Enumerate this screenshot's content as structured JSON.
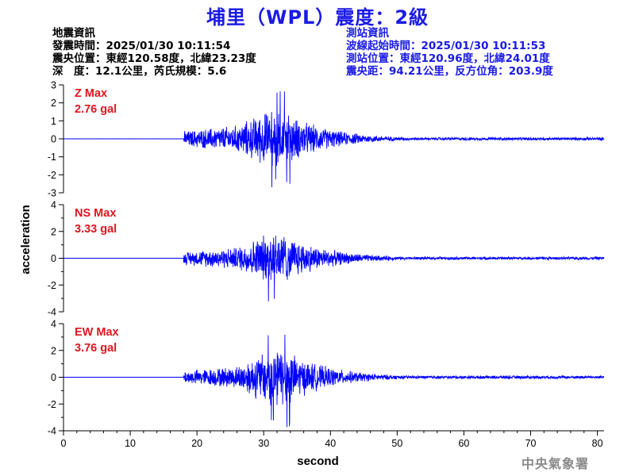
{
  "title": "埔里（WPL）震度：2級",
  "event_info": {
    "heading": "地震資訊",
    "origin_time": "發震時間：2025/01/30 10:11:54",
    "epicenter": "震央位置：東經120.58度，北緯23.23度",
    "depth_magnitude": "深　度：12.1公里，芮氏規模：5.6"
  },
  "station_info": {
    "heading": "測站資訊",
    "wave_start": "波線起始時間：2025/01/30 10:11:53",
    "station_location": "測站位置：東經120.96度，北緯24.01度",
    "distance_azimuth": "震央距：94.21公里，反方位角：203.9度"
  },
  "credit": "中央氣象署",
  "colors": {
    "title": "#1a1ae6",
    "station_info": "#1a1ae6",
    "trace": "#0000ff",
    "max_label": "#e0141e",
    "axis": "#000000"
  },
  "chart_data": {
    "type": "line",
    "xlabel": "second",
    "ylabel": "acceleration",
    "xlim": [
      0,
      81
    ],
    "x_ticks": [
      "0",
      "10",
      "20",
      "30",
      "40",
      "50",
      "60",
      "70",
      "80"
    ],
    "panels": [
      {
        "name": "Z",
        "max_label": "Z Max",
        "max_value": "2.76 gal",
        "ylim": [
          -3,
          3
        ],
        "y_ticks": [
          "3",
          "2",
          "1",
          "0",
          "-1",
          "-2",
          "-3"
        ],
        "envelope": {
          "onset": 18,
          "peak_time": 32,
          "peak": 2.76,
          "pre_level": 0.45,
          "tail_level": 0.07
        }
      },
      {
        "name": "NS",
        "max_label": "NS Max",
        "max_value": "3.33 gal",
        "ylim": [
          -4,
          4
        ],
        "y_ticks": [
          "4",
          "2",
          "0",
          "-2",
          "-4"
        ],
        "envelope": {
          "onset": 18,
          "peak_time": 32,
          "peak": 3.33,
          "pre_level": 0.5,
          "tail_level": 0.09
        }
      },
      {
        "name": "EW",
        "max_label": "EW Max",
        "max_value": "3.76 gal",
        "ylim": [
          -4,
          4
        ],
        "y_ticks": [
          "4",
          "2",
          "0",
          "-2",
          "-4"
        ],
        "envelope": {
          "onset": 18,
          "peak_time": 32,
          "peak": 3.76,
          "pre_level": 0.5,
          "tail_level": 0.1
        }
      }
    ]
  }
}
